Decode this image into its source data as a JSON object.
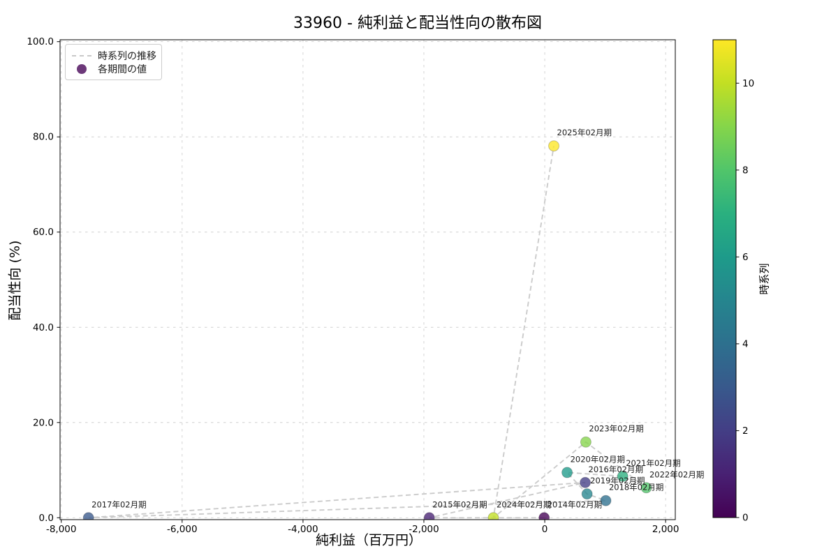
{
  "title": "33960 - 純利益と配当性向の散布図",
  "chart_data": {
    "type": "scatter",
    "title": "33960 - 純利益と配当性向の散布図",
    "xlabel": "純利益（百万円）",
    "ylabel": "配当性向 (%)",
    "xlim": [
      -8020,
      2160
    ],
    "ylim": [
      -0.4,
      100.4
    ],
    "xticks": [
      -8000,
      -6000,
      -4000,
      -2000,
      0,
      2000
    ],
    "yticks": [
      0,
      20,
      40,
      60,
      80,
      100
    ],
    "grid": true,
    "legend": {
      "position": "upper left",
      "line": "時系列の推移",
      "marker": "各期間の値"
    },
    "colorbar": {
      "label": "時系列",
      "vmin": 0,
      "vmax": 11,
      "ticks": [
        0,
        2,
        4,
        6,
        8,
        10
      ]
    },
    "points": [
      {
        "period": "2014年02月期",
        "t": 0,
        "net_income": -10,
        "payout_ratio": 0.0
      },
      {
        "period": "2015年02月期",
        "t": 1,
        "net_income": -1910,
        "payout_ratio": 0.0
      },
      {
        "period": "2016年02月期",
        "t": 2,
        "net_income": 670,
        "payout_ratio": 7.4
      },
      {
        "period": "2017年02月期",
        "t": 3,
        "net_income": -7550,
        "payout_ratio": 0.0
      },
      {
        "period": "2018年02月期",
        "t": 4,
        "net_income": 1010,
        "payout_ratio": 3.6
      },
      {
        "period": "2019年02月期",
        "t": 5,
        "net_income": 700,
        "payout_ratio": 5.0
      },
      {
        "period": "2020年02月期",
        "t": 6,
        "net_income": 370,
        "payout_ratio": 9.5
      },
      {
        "period": "2021年02月期",
        "t": 7,
        "net_income": 1290,
        "payout_ratio": 8.7
      },
      {
        "period": "2022年02月期",
        "t": 8,
        "net_income": 1680,
        "payout_ratio": 6.3
      },
      {
        "period": "2023年02月期",
        "t": 9,
        "net_income": 680,
        "payout_ratio": 15.9
      },
      {
        "period": "2024年02月期",
        "t": 10,
        "net_income": -850,
        "payout_ratio": 0.0
      },
      {
        "period": "2025年02月期",
        "t": 11,
        "net_income": 150,
        "payout_ratio": 78.1
      }
    ],
    "colormap": "viridis",
    "viridis_colors": [
      "#440154",
      "#482173",
      "#433e85",
      "#38598c",
      "#2d708e",
      "#25858e",
      "#1e9b8a",
      "#2ab07f",
      "#51c56a",
      "#85d54a",
      "#c2df23",
      "#fde725"
    ],
    "style": {
      "grid_color": "#cfcfcf",
      "trajectory_color": "#c8c8c8",
      "spine_color": "#000000",
      "annotation_color": "#1a1a1a",
      "tick_label_color": "#000000",
      "marker_opacity": 0.78
    }
  }
}
